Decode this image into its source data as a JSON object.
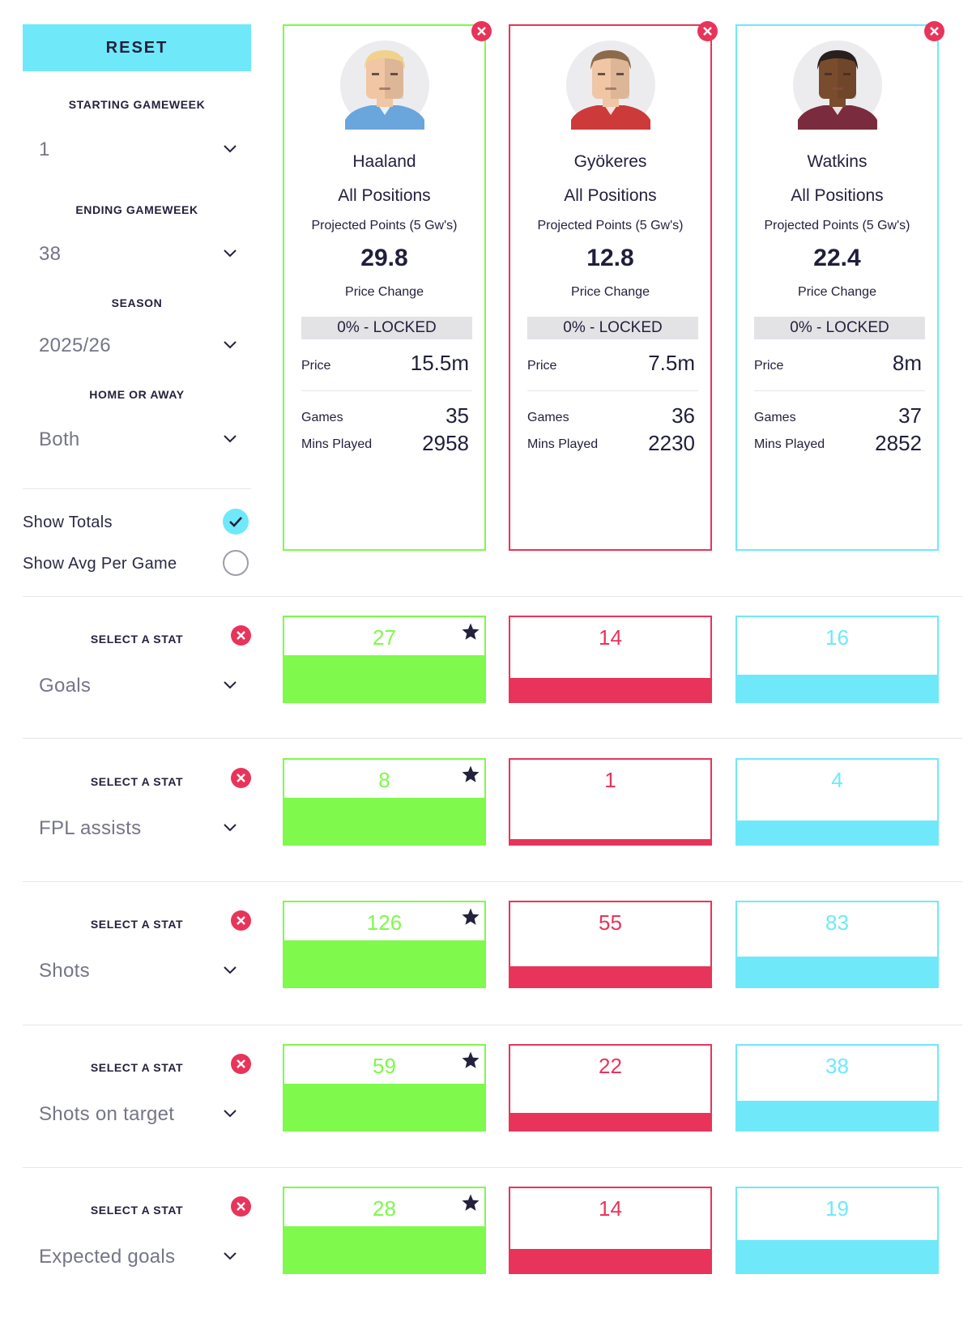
{
  "filters": {
    "reset_label": "RESET",
    "starting_gameweek": {
      "label": "STARTING GAMEWEEK",
      "value": "1"
    },
    "ending_gameweek": {
      "label": "ENDING GAMEWEEK",
      "value": "38"
    },
    "season": {
      "label": "SEASON",
      "value": "2025/26"
    },
    "home_or_away": {
      "label": "HOME OR AWAY",
      "value": "Both"
    },
    "show_totals": {
      "label": "Show Totals",
      "checked": true
    },
    "show_avg": {
      "label": "Show Avg Per Game",
      "checked": false
    }
  },
  "colors": {
    "green": "#7ef94c",
    "red": "#e8345a",
    "cyan": "#6fe9f9",
    "star": "#24213d"
  },
  "players": [
    {
      "name": "Haaland",
      "position": "All Positions",
      "projected_label": "Projected Points (5 Gw's)",
      "projected_value": "29.8",
      "price_change_label": "Price Change",
      "price_change_value": "0% - LOCKED",
      "price_label": "Price",
      "price_value": "15.5m",
      "games_label": "Games",
      "games_value": "35",
      "mins_label": "Mins Played",
      "mins_value": "2958",
      "color": "green",
      "avatar_icon": "player-avatar-icon"
    },
    {
      "name": "Gyökeres",
      "position": "All Positions",
      "projected_label": "Projected Points (5 Gw's)",
      "projected_value": "12.8",
      "price_change_label": "Price Change",
      "price_change_value": "0% - LOCKED",
      "price_label": "Price",
      "price_value": "7.5m",
      "games_label": "Games",
      "games_value": "36",
      "mins_label": "Mins Played",
      "mins_value": "2230",
      "color": "red",
      "avatar_icon": "player-avatar-icon"
    },
    {
      "name": "Watkins",
      "position": "All Positions",
      "projected_label": "Projected Points (5 Gw's)",
      "projected_value": "22.4",
      "price_change_label": "Price Change",
      "price_change_value": "0% - LOCKED",
      "price_label": "Price",
      "price_value": "8m",
      "games_label": "Games",
      "games_value": "37",
      "mins_label": "Mins Played",
      "mins_value": "2852",
      "color": "cyan",
      "avatar_icon": "player-avatar-icon"
    }
  ],
  "stats": [
    {
      "label": "SELECT A STAT",
      "stat": "Goals",
      "values": [
        "27",
        "14",
        "16"
      ],
      "fill": [
        0.55,
        0.28,
        0.32
      ],
      "leader": 0
    },
    {
      "label": "SELECT A STAT",
      "stat": "FPL assists",
      "values": [
        "8",
        "1",
        "4"
      ],
      "fill": [
        0.55,
        0.06,
        0.28
      ],
      "leader": 0
    },
    {
      "label": "SELECT A STAT",
      "stat": "Shots",
      "values": [
        "126",
        "55",
        "83"
      ],
      "fill": [
        0.55,
        0.24,
        0.36
      ],
      "leader": 0
    },
    {
      "label": "SELECT A STAT",
      "stat": "Shots on target",
      "values": [
        "59",
        "22",
        "38"
      ],
      "fill": [
        0.55,
        0.2,
        0.35
      ],
      "leader": 0
    },
    {
      "label": "SELECT A STAT",
      "stat": "Expected goals",
      "values": [
        "28",
        "14",
        "19"
      ],
      "fill": [
        0.55,
        0.28,
        0.38
      ],
      "leader": 0
    }
  ]
}
